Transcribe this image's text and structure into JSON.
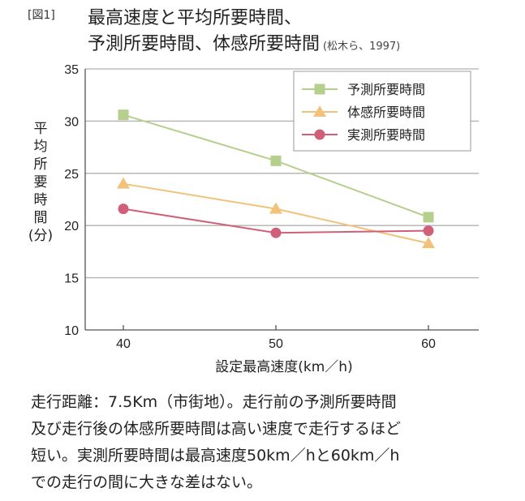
{
  "figure_label": "[図1]",
  "title_line1": "最高速度と平均所要時間、",
  "title_line2": "予測所要時間、体感所要時間",
  "citation": "(松木ら、1997)",
  "ylabel_chars": [
    "平",
    "均",
    "所",
    "要",
    "時",
    "間",
    "(分)"
  ],
  "colors": {
    "series_pred": "#b5cf8c",
    "series_feel": "#f2c27a",
    "series_actual": "#d0607a",
    "grid": "#b0b0b0",
    "axis": "#555555"
  },
  "chart_data": {
    "type": "line",
    "x": [
      40,
      50,
      60
    ],
    "xticks": [
      "40",
      "50",
      "60"
    ],
    "xlabel": "設定最高速度(km／h)",
    "ylabel": "平均所要時間(分)",
    "ylim": [
      10,
      35
    ],
    "yticks": [
      "10",
      "15",
      "20",
      "25",
      "30",
      "35"
    ],
    "grid": "horizontal",
    "legend_position": "top-right",
    "series": [
      {
        "name": "予測所要時間",
        "marker": "square",
        "color": "#b5cf8c",
        "values": [
          30.6,
          26.2,
          20.8
        ]
      },
      {
        "name": "体感所要時間",
        "marker": "triangle",
        "color": "#f2c27a",
        "values": [
          24.0,
          21.6,
          18.3
        ]
      },
      {
        "name": "実測所要時間",
        "marker": "circle",
        "color": "#d0607a",
        "values": [
          21.6,
          19.3,
          19.5
        ]
      }
    ]
  },
  "caption_lines": [
    "走行距離：7.5Km（市街地）。走行前の予測所要時間",
    "及び走行後の体感所要時間は高い速度で走行するほど",
    "短い。実測所要時間は最高速度50km／hと60km／h",
    "での走行の間に大きな差はない。"
  ]
}
